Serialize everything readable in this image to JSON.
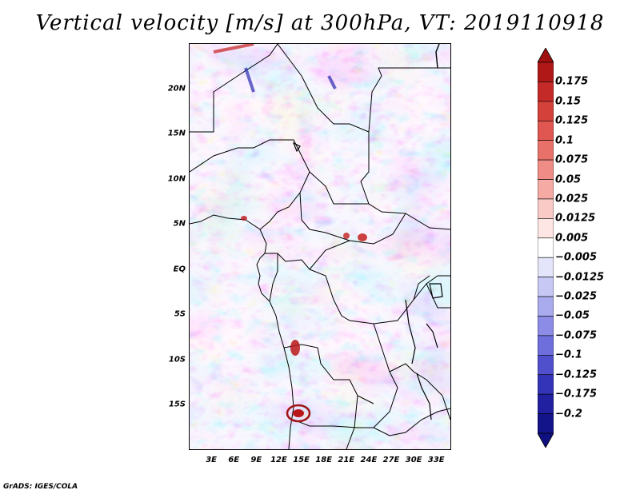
{
  "title": "Vertical velocity [m/s] at 300hPa, VT: 2019110918",
  "credit": "GrADS: IGES/COLA",
  "map": {
    "lon_range": [
      0,
      35
    ],
    "lat_range": [
      -20,
      25
    ],
    "lat_labels": [
      "20N",
      "15N",
      "10N",
      "5N",
      "EQ",
      "5S",
      "10S",
      "15S"
    ],
    "lon_labels": [
      "3E",
      "6E",
      "9E",
      "12E",
      "15E",
      "18E",
      "21E",
      "24E",
      "27E",
      "30E",
      "33E"
    ],
    "lat_values": [
      20,
      15,
      10,
      5,
      0,
      -5,
      -10,
      -15
    ],
    "lon_values": [
      3,
      6,
      9,
      12,
      15,
      18,
      21,
      24,
      27,
      30,
      33
    ]
  },
  "colorbar": {
    "labels": [
      "0.175",
      "0.15",
      "0.125",
      "0.1",
      "0.075",
      "0.05",
      "0.025",
      "0.0125",
      "0.005",
      "−0.005",
      "−0.0125",
      "−0.025",
      "−0.05",
      "−0.075",
      "−0.1",
      "−0.125",
      "−0.175",
      "−0.2"
    ],
    "colors": [
      "#b01818",
      "#c42a28",
      "#d4403a",
      "#e05650",
      "#e8726a",
      "#f08c86",
      "#f5aaa4",
      "#f9cac6",
      "#fde6e4",
      "#ffffff",
      "#e4e4fa",
      "#c8c8f5",
      "#aaaaee",
      "#8c8ce6",
      "#6e6edc",
      "#5050cc",
      "#3434b8",
      "#2020a0",
      "#14148a"
    ],
    "max_color": "#a01010",
    "min_color": "#101080"
  }
}
